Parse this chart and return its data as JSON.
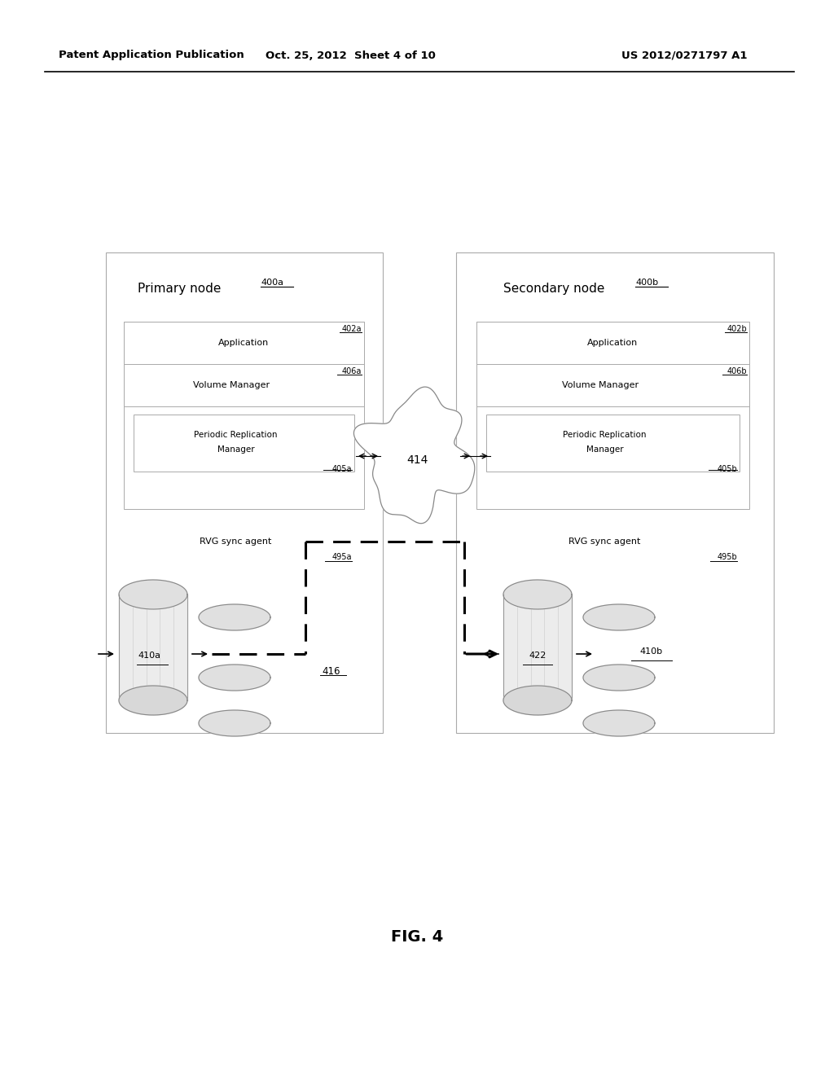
{
  "header_left": "Patent Application Publication",
  "header_mid": "Oct. 25, 2012  Sheet 4 of 10",
  "header_right": "US 2012/0271797 A1",
  "fig_label": "FIG. 4",
  "primary_node_label": "Primary node",
  "primary_node_ref": "400a",
  "secondary_node_label": "Secondary node",
  "secondary_node_ref": "400b",
  "app_a_label": "Application",
  "app_a_ref": "402a",
  "app_b_label": "Application",
  "app_b_ref": "402b",
  "vm_a_label": "Volume Manager",
  "vm_a_ref": "406a",
  "vm_b_label": "Volume Manager",
  "vm_b_ref": "406b",
  "prm_a_label_1": "Periodic Replication",
  "prm_a_label_2": "Manager",
  "prm_a_ref": "405a",
  "prm_b_label_1": "Periodic Replication",
  "prm_b_label_2": "Manager",
  "prm_b_ref": "405b",
  "rvg_a_label": "RVG sync agent",
  "rvg_a_ref": "495a",
  "rvg_b_label": "RVG sync agent",
  "rvg_b_ref": "495b",
  "cloud_ref": "414",
  "arrow_ref": "416",
  "vol_a_ref": "410a",
  "ref_vol_ref": "422",
  "vol_b_ref": "410b",
  "background_color": "#ffffff",
  "text_color": "#000000",
  "box_edge_color": "#aaaaaa",
  "inner_box_edge_color": "#aaaaaa"
}
